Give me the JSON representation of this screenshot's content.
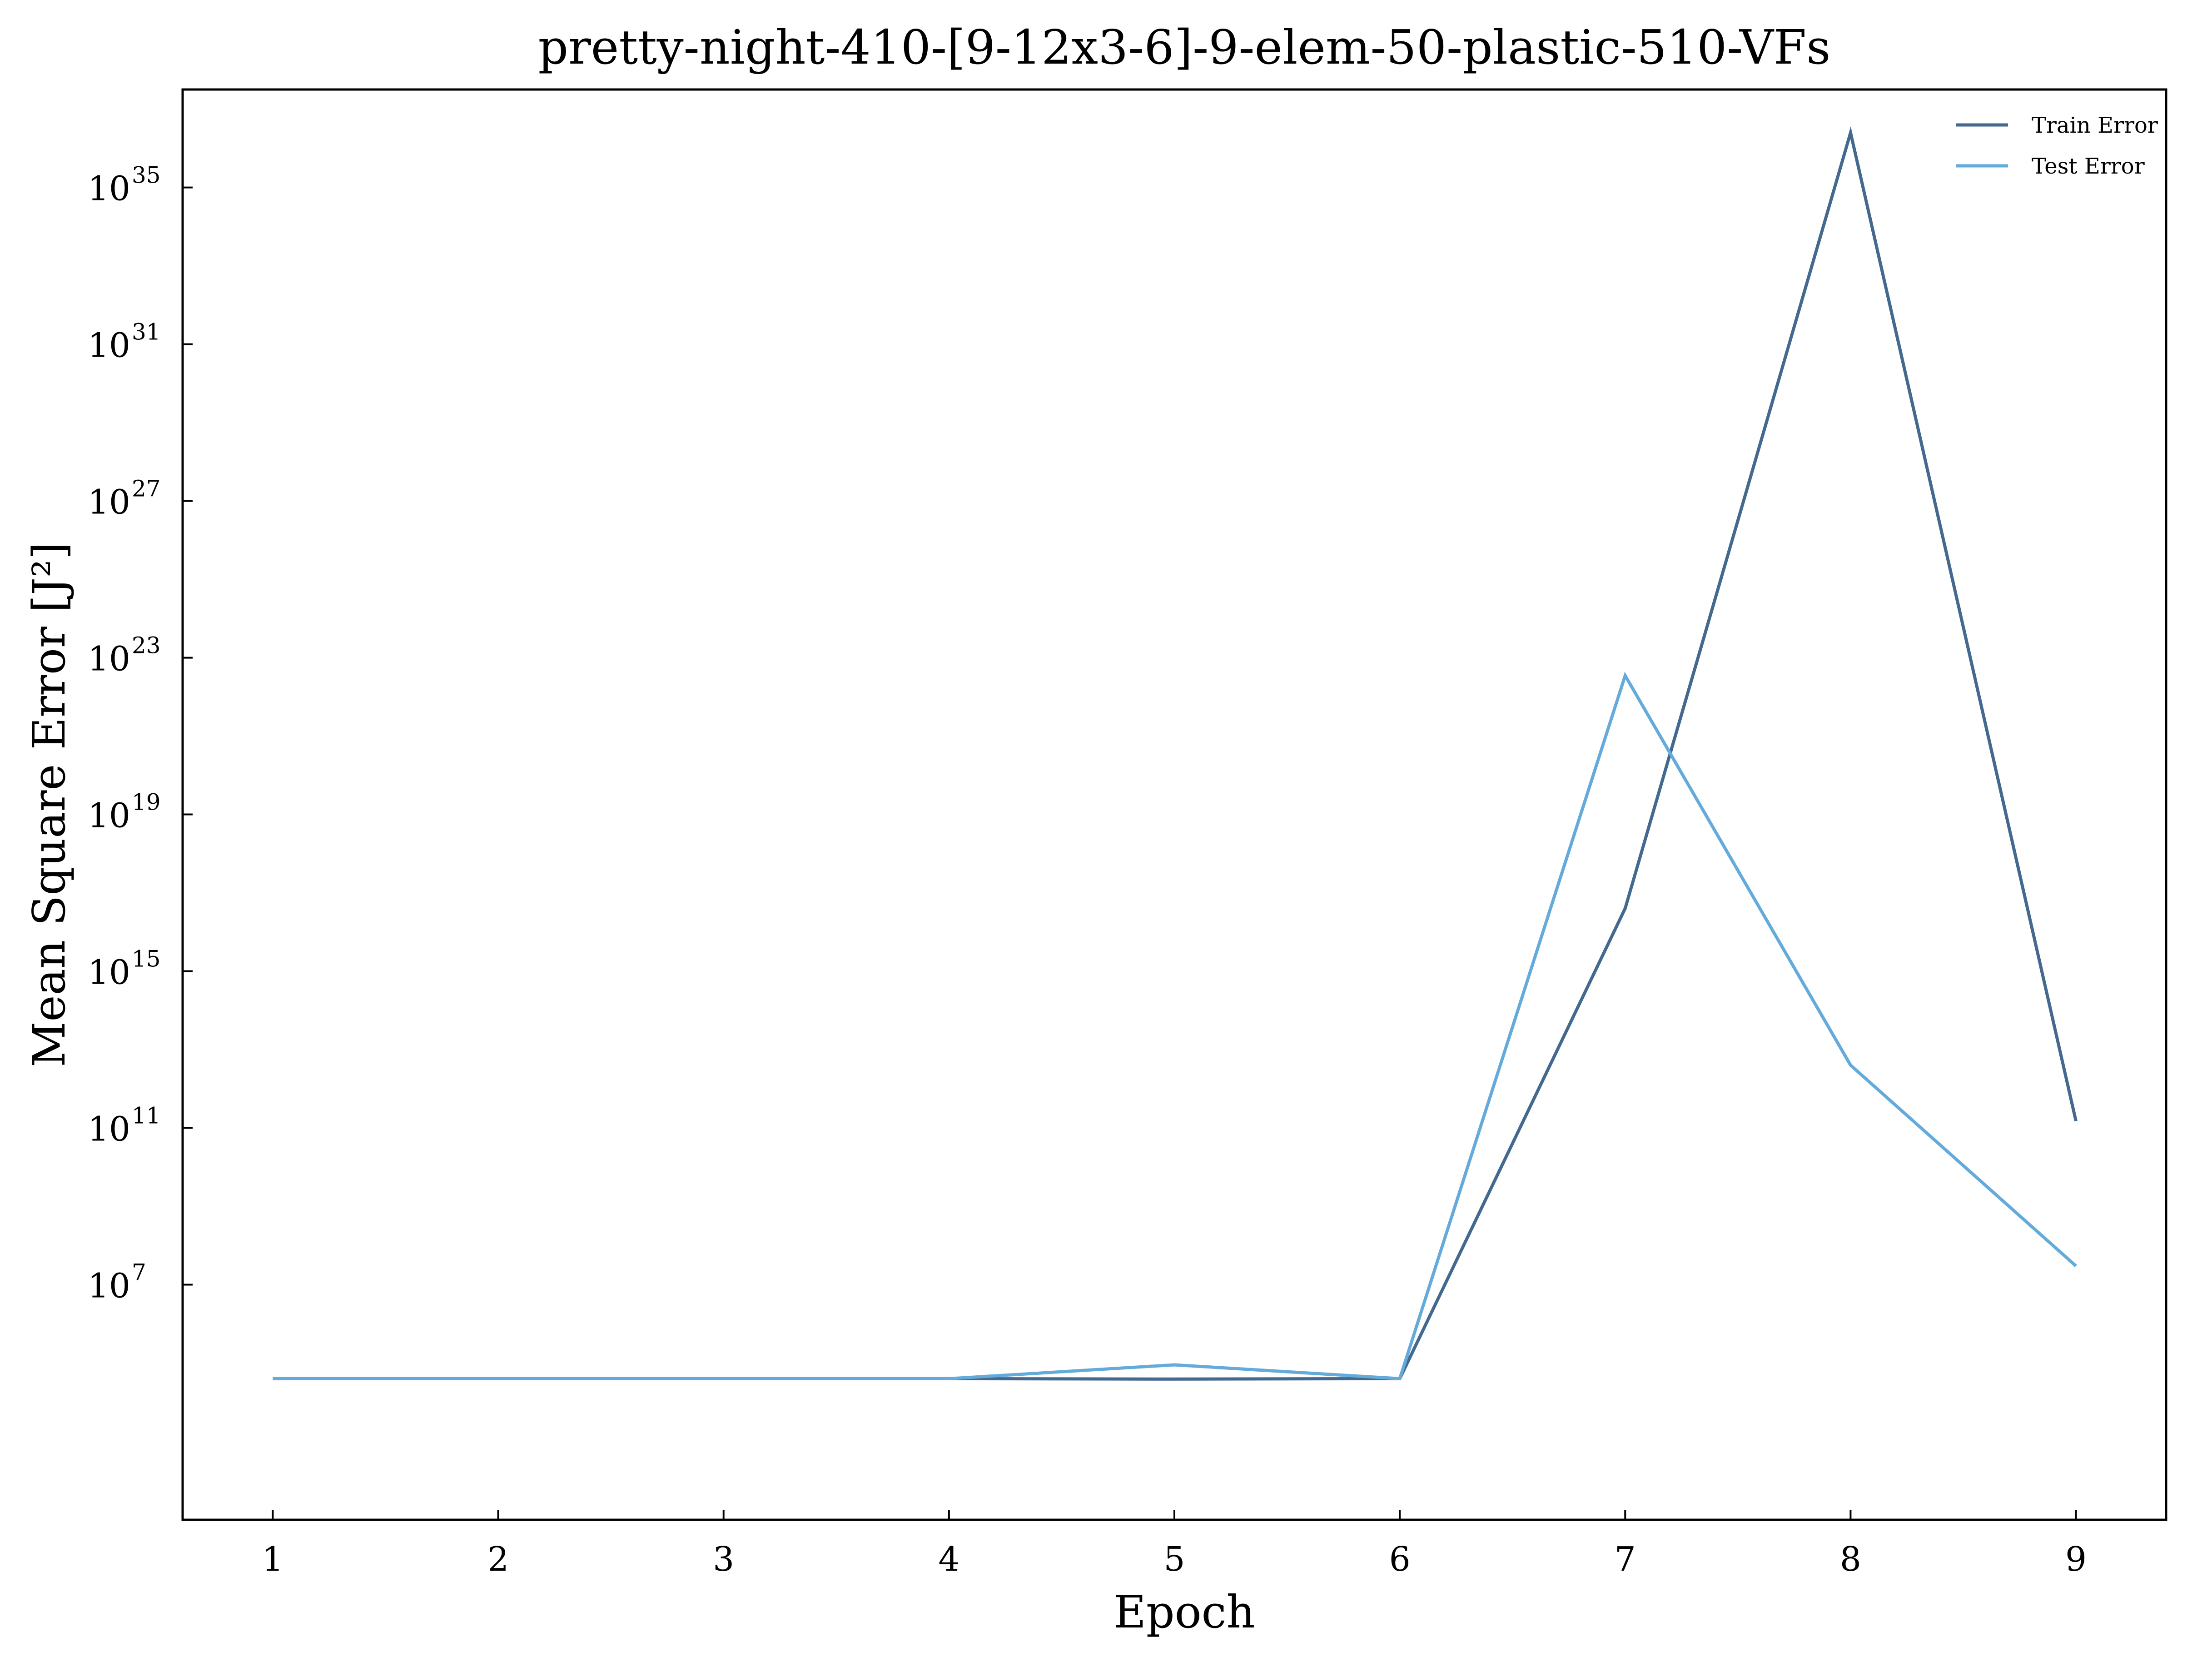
{
  "chart_data": {
    "type": "line",
    "title": "pretty-night-410-[9-12x3-6]-9-elem-50-plastic-510-VFs",
    "xlabel": "Epoch",
    "ylabel": "Mean Square Error [J²]",
    "yscale": "log",
    "x": [
      1,
      2,
      3,
      4,
      5,
      6,
      7,
      8,
      9
    ],
    "xlim": [
      0.6,
      9.4
    ],
    "x_ticks": [
      "1",
      "2",
      "3",
      "4",
      "5",
      "6",
      "7",
      "8",
      "9"
    ],
    "ylim_exp": [
      1.0,
      37.5
    ],
    "y_ticks": [
      {
        "base": "10",
        "exp": "7",
        "value_exp": 7
      },
      {
        "base": "10",
        "exp": "11",
        "value_exp": 11
      },
      {
        "base": "10",
        "exp": "15",
        "value_exp": 15
      },
      {
        "base": "10",
        "exp": "19",
        "value_exp": 19
      },
      {
        "base": "10",
        "exp": "23",
        "value_exp": 23
      },
      {
        "base": "10",
        "exp": "27",
        "value_exp": 27
      },
      {
        "base": "10",
        "exp": "31",
        "value_exp": 31
      },
      {
        "base": "10",
        "exp": "35",
        "value_exp": 35
      }
    ],
    "series": [
      {
        "name": "Train Error",
        "color": "#44698f",
        "values": [
          40000.0,
          40000.0,
          40000.0,
          40000.0,
          39000.0,
          40000.0,
          4e+16,
          2.5e+36,
          150000000000.0
        ]
      },
      {
        "name": "Test Error",
        "color": "#64abdb",
        "values": [
          40000.0,
          40000.0,
          40000.0,
          40000.0,
          90000.0,
          40000.0,
          3.5e+22,
          4000000000000.0,
          30000000.0
        ]
      }
    ],
    "grid": false,
    "legend_position": "top-right"
  }
}
